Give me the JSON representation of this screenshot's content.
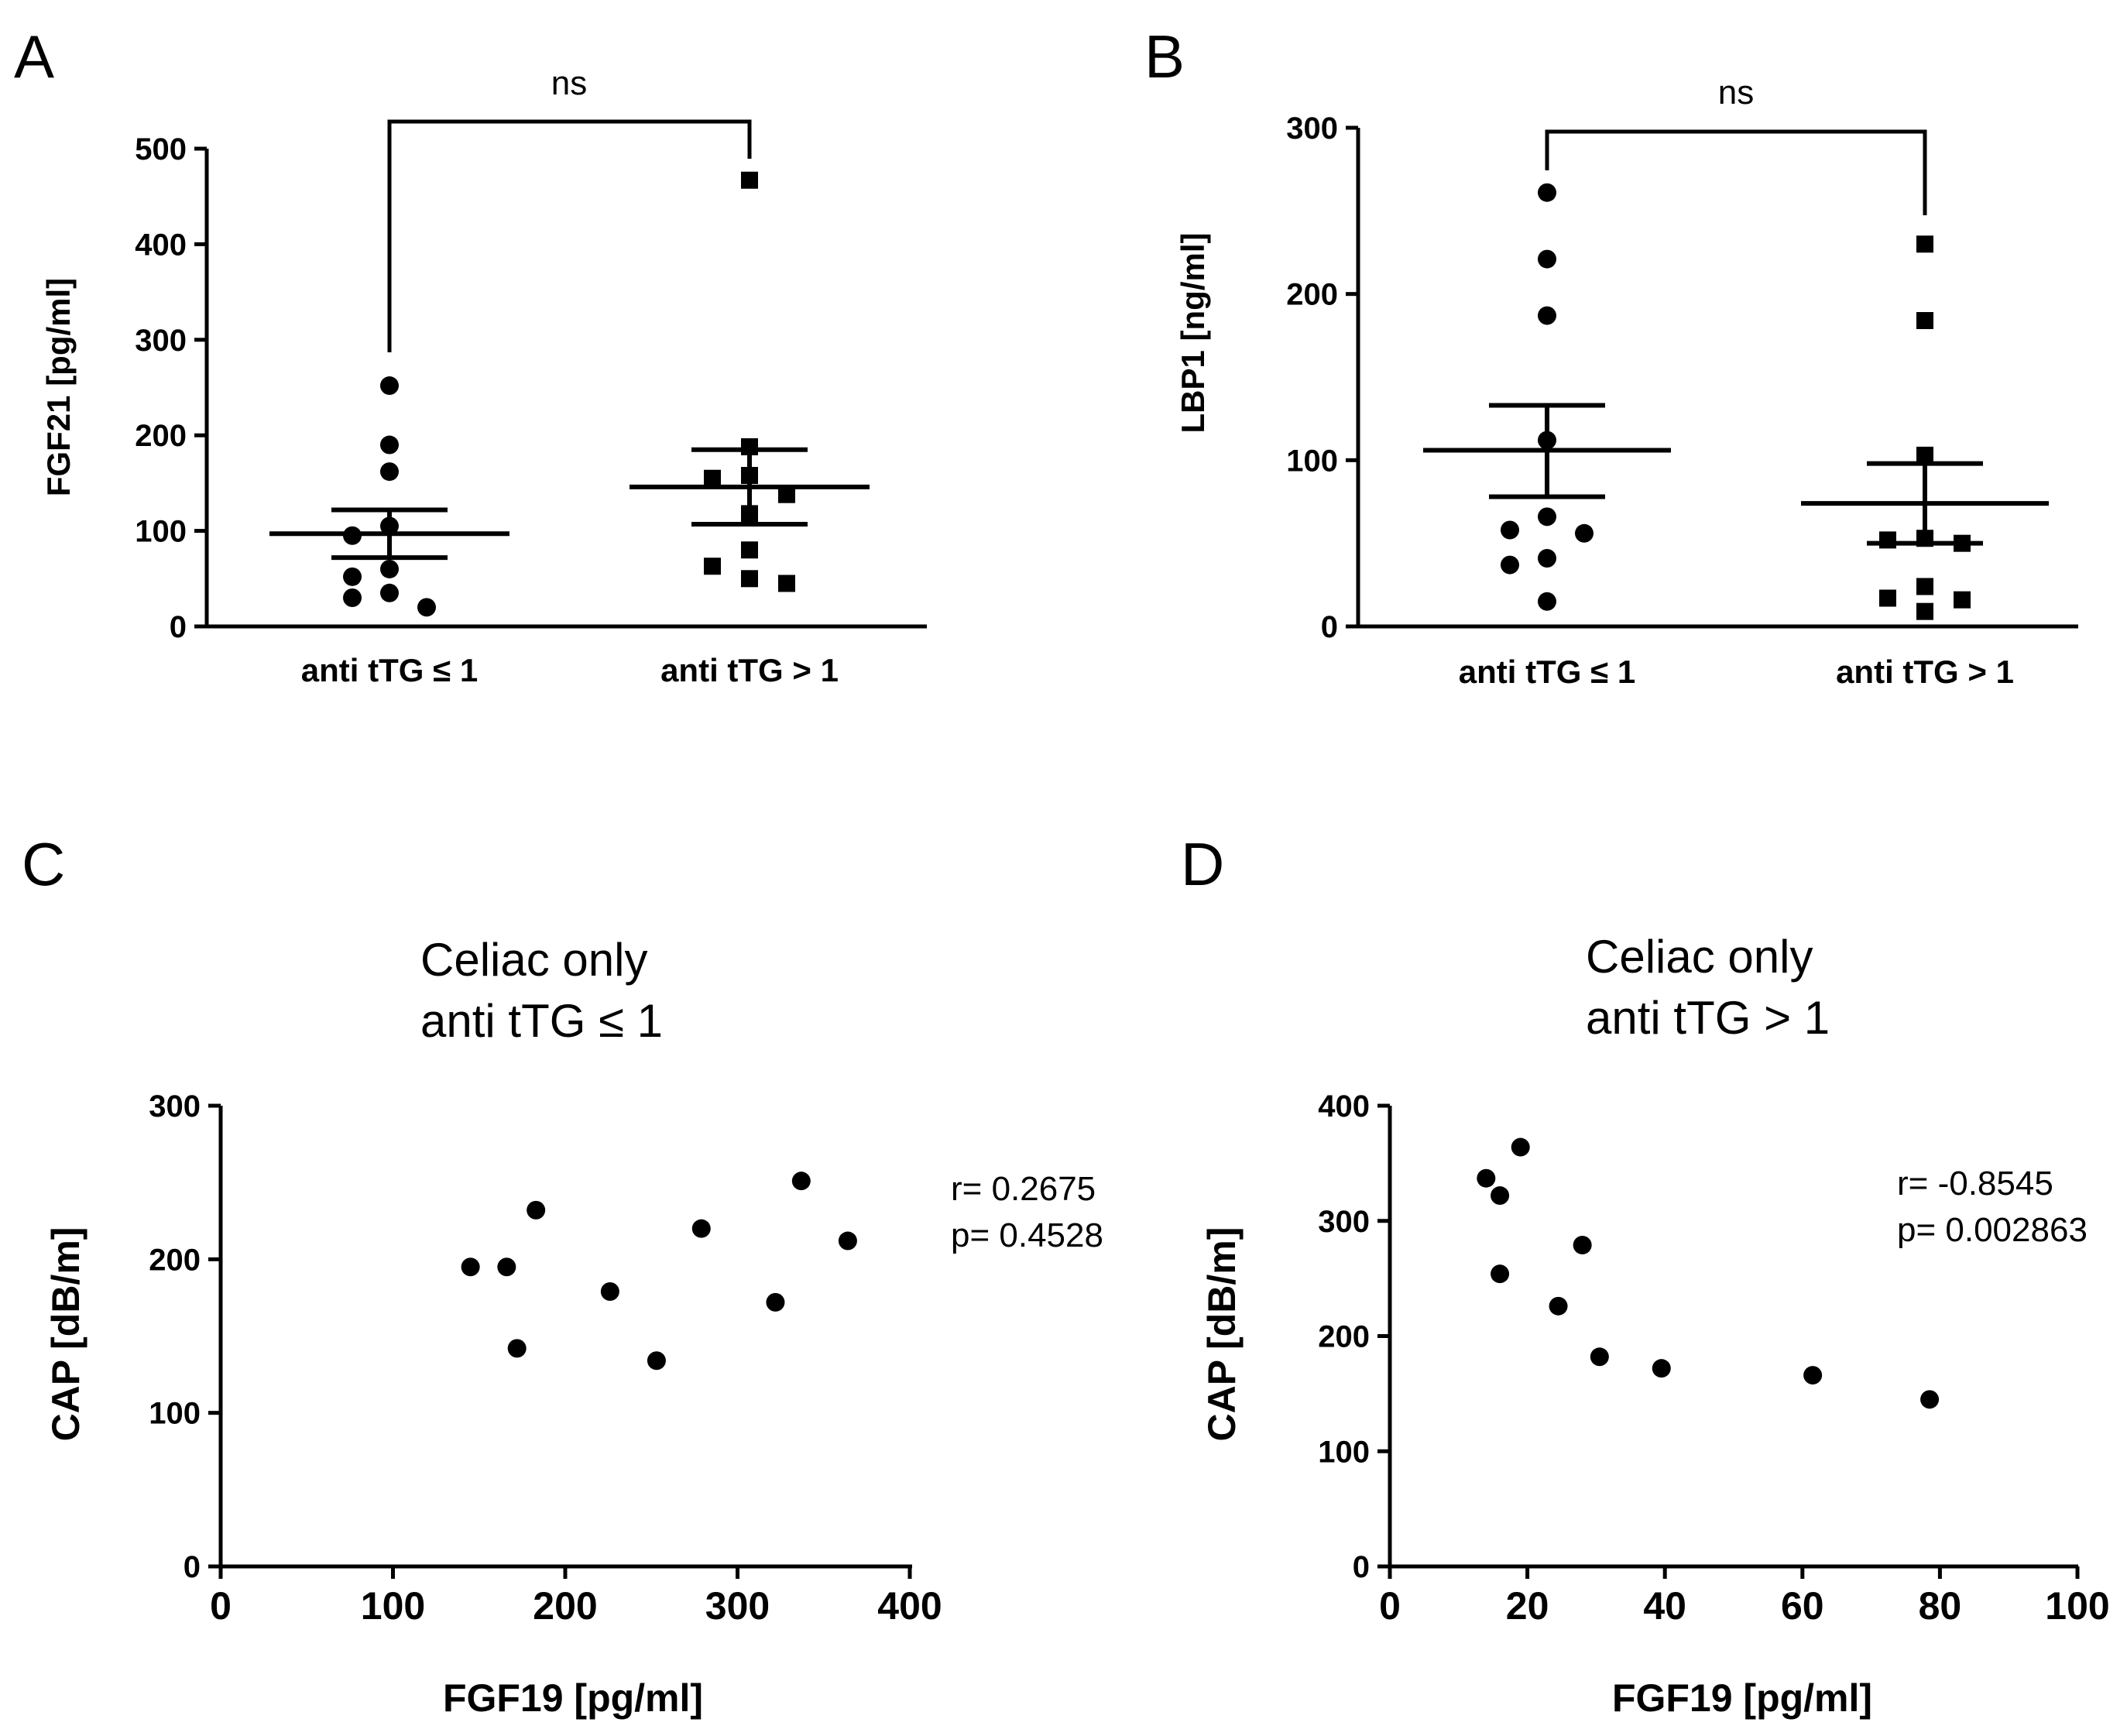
{
  "chart_data": [
    {
      "panel": "A",
      "type": "scatter",
      "ylabel": "FGF21 [pg/ml]",
      "xlabel": "",
      "ylim": [
        0,
        500
      ],
      "yticks": [
        0,
        100,
        200,
        300,
        400,
        500
      ],
      "categories": [
        "anti tTG ≤ 1",
        "anti tTG > 1"
      ],
      "significance": "ns",
      "groups": [
        {
          "name": "anti tTG ≤ 1",
          "marker": "circle",
          "values": [
            252,
            190,
            162,
            105,
            95,
            60,
            52,
            35,
            30,
            20
          ],
          "mean": 97,
          "sem_low": 72,
          "sem_high": 122
        },
        {
          "name": "anti tTG > 1",
          "marker": "square",
          "values": [
            467,
            188,
            158,
            155,
            138,
            118,
            80,
            63,
            50,
            45
          ],
          "mean": 146,
          "sem_low": 107,
          "sem_high": 185
        }
      ]
    },
    {
      "panel": "B",
      "type": "scatter",
      "ylabel": "LBP1 [ng/ml]",
      "xlabel": "",
      "ylim": [
        0,
        300
      ],
      "yticks": [
        0,
        100,
        200,
        300
      ],
      "categories": [
        "anti tTG ≤ 1",
        "anti tTG > 1"
      ],
      "significance": "ns",
      "groups": [
        {
          "name": "anti tTG ≤ 1",
          "marker": "circle",
          "values": [
            261,
            221,
            187,
            112,
            66,
            58,
            56,
            41,
            37,
            15
          ],
          "mean": 106,
          "sem_low": 78,
          "sem_high": 133
        },
        {
          "name": "anti tTG > 1",
          "marker": "square",
          "values": [
            230,
            184,
            103,
            53,
            52,
            50,
            24,
            17,
            16,
            9
          ],
          "mean": 74,
          "sem_low": 50,
          "sem_high": 98
        }
      ]
    },
    {
      "panel": "C",
      "type": "scatter",
      "title": [
        "Celiac only",
        "anti tTG ≤ 1"
      ],
      "xlabel": "FGF19 [pg/ml]",
      "ylabel": "CAP [dB/m]",
      "xlim": [
        0,
        400
      ],
      "xticks": [
        0,
        100,
        200,
        300,
        400
      ],
      "ylim": [
        0,
        300
      ],
      "yticks": [
        0,
        100,
        200,
        300
      ],
      "stats": [
        "r= 0.2675",
        "p= 0.4528"
      ],
      "points": [
        {
          "x": 145,
          "y": 195
        },
        {
          "x": 166,
          "y": 195
        },
        {
          "x": 172,
          "y": 142
        },
        {
          "x": 183,
          "y": 232
        },
        {
          "x": 226,
          "y": 179
        },
        {
          "x": 253,
          "y": 134
        },
        {
          "x": 279,
          "y": 220
        },
        {
          "x": 322,
          "y": 172
        },
        {
          "x": 337,
          "y": 251
        },
        {
          "x": 364,
          "y": 212
        }
      ]
    },
    {
      "panel": "D",
      "type": "scatter",
      "title": [
        "Celiac only",
        "anti tTG > 1"
      ],
      "xlabel": "FGF19 [pg/ml]",
      "ylabel": "CAP [dB/m]",
      "xlim": [
        0,
        100
      ],
      "xticks": [
        0,
        20,
        40,
        60,
        80,
        100
      ],
      "ylim": [
        0,
        400
      ],
      "yticks": [
        0,
        100,
        200,
        300,
        400
      ],
      "stats": [
        "r= -0.8545",
        "p= 0.002863"
      ],
      "points": [
        {
          "x": 14,
          "y": 337
        },
        {
          "x": 16,
          "y": 322
        },
        {
          "x": 16,
          "y": 254
        },
        {
          "x": 19,
          "y": 364
        },
        {
          "x": 24.5,
          "y": 226
        },
        {
          "x": 28,
          "y": 279
        },
        {
          "x": 30.5,
          "y": 182
        },
        {
          "x": 39.5,
          "y": 172
        },
        {
          "x": 61.5,
          "y": 166
        },
        {
          "x": 78.5,
          "y": 145
        }
      ]
    }
  ]
}
